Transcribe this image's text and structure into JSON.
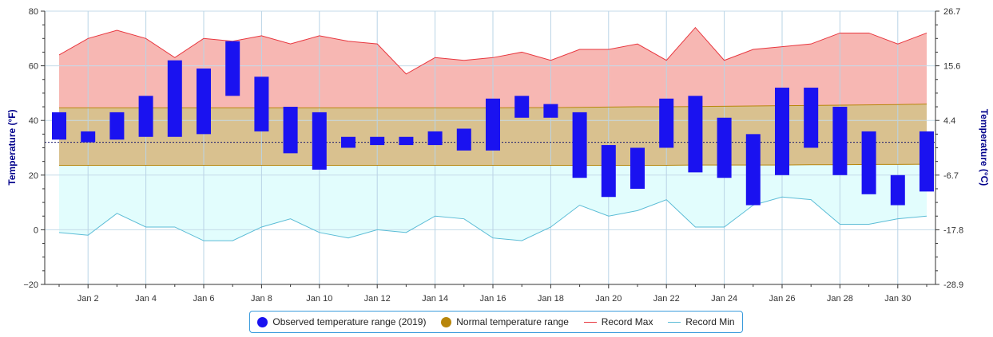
{
  "chart_data": {
    "type": "bar",
    "title": "",
    "ylabel_left": "Temperature (°F)",
    "ylabel_right": "Temperature (°C)",
    "ylim": [
      -20,
      80
    ],
    "x_ticks": [
      "Jan 2",
      "Jan 4",
      "Jan 6",
      "Jan 8",
      "Jan 10",
      "Jan 12",
      "Jan 14",
      "Jan 16",
      "Jan 18",
      "Jan 20",
      "Jan 22",
      "Jan 24",
      "Jan 26",
      "Jan 28",
      "Jan 30"
    ],
    "y_ticks_left": [
      "80",
      "60",
      "40",
      "20",
      "0",
      "−20"
    ],
    "y_ticks_right": [
      "26.7",
      "15.6",
      "4.4",
      "-6.7",
      "-17.8",
      "-28.9"
    ],
    "freezing_line": 32,
    "days": [
      1,
      2,
      3,
      4,
      5,
      6,
      7,
      8,
      9,
      10,
      11,
      12,
      13,
      14,
      15,
      16,
      17,
      18,
      19,
      20,
      21,
      22,
      23,
      24,
      25,
      26,
      27,
      28,
      29,
      30,
      31
    ],
    "series": [
      {
        "name": "Observed temperature range (2019)",
        "color": "#1a12f0",
        "low": [
          33,
          32,
          33,
          34,
          34,
          35,
          49,
          36,
          28,
          22,
          30,
          31,
          31,
          31,
          29,
          29,
          41,
          41,
          19,
          12,
          15,
          30,
          21,
          19,
          9,
          20,
          30,
          20,
          13,
          9,
          14
        ],
        "high": [
          43,
          36,
          43,
          49,
          62,
          59,
          69,
          56,
          45,
          43,
          34,
          34,
          34,
          36,
          37,
          48,
          49,
          46,
          43,
          31,
          30,
          48,
          49,
          41,
          35,
          52,
          52,
          45,
          36,
          20,
          36
        ]
      },
      {
        "name": "Normal temperature range",
        "color": "#b8860b",
        "low": [
          23.6,
          23.6,
          23.6,
          23.6,
          23.6,
          23.6,
          23.6,
          23.6,
          23.6,
          23.6,
          23.6,
          23.6,
          23.6,
          23.6,
          23.6,
          23.6,
          23.6,
          23.6,
          23.6,
          23.6,
          23.6,
          23.6,
          23.7,
          23.7,
          23.7,
          23.7,
          23.8,
          23.8,
          23.9,
          23.9,
          24.0
        ],
        "high": [
          44.6,
          44.6,
          44.6,
          44.6,
          44.6,
          44.6,
          44.6,
          44.6,
          44.6,
          44.6,
          44.6,
          44.6,
          44.6,
          44.6,
          44.6,
          44.6,
          44.7,
          44.7,
          44.8,
          44.9,
          45.0,
          45.0,
          45.1,
          45.2,
          45.3,
          45.4,
          45.5,
          45.6,
          45.7,
          45.8,
          46.0
        ]
      },
      {
        "name": "Record Max",
        "color": "#e8373f",
        "values": [
          64,
          70,
          73,
          70,
          63,
          70,
          69,
          71,
          68,
          71,
          69,
          68,
          57,
          63,
          62,
          63,
          65,
          62,
          66,
          66,
          68,
          62,
          74,
          62,
          66,
          67,
          68,
          72,
          72,
          68,
          72
        ]
      },
      {
        "name": "Record Min",
        "color": "#5bbcd6",
        "values": [
          -1,
          -2,
          6,
          1,
          1,
          -4,
          -4,
          1,
          4,
          -1,
          -3,
          0,
          -1,
          5,
          4,
          -3,
          -4,
          1,
          9,
          5,
          7,
          11,
          1,
          1,
          9,
          12,
          11,
          2,
          2,
          4,
          5
        ]
      }
    ]
  }
}
